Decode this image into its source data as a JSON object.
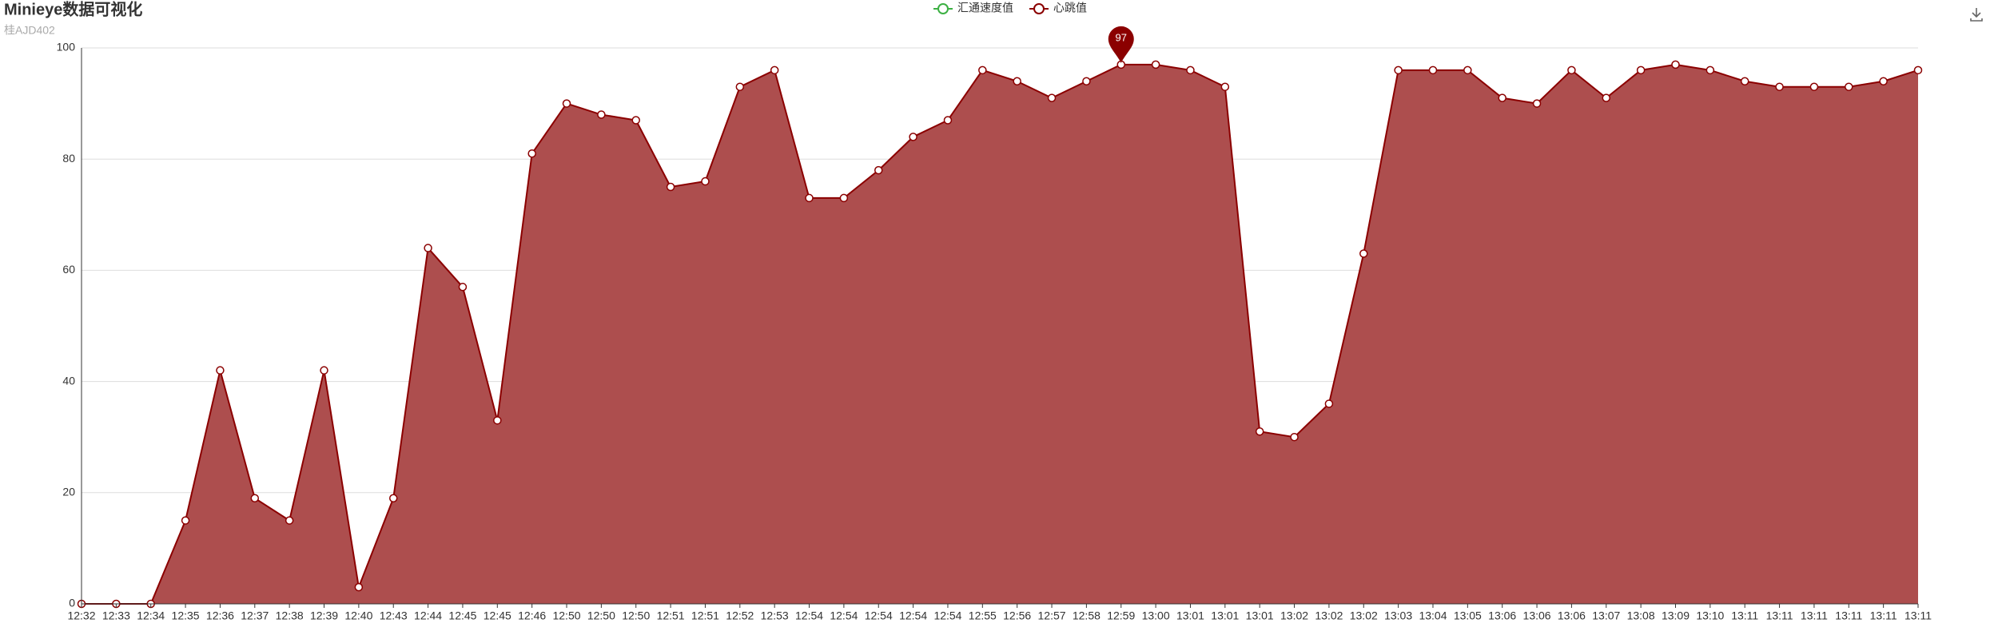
{
  "chart_data": {
    "type": "area",
    "title": "Minieye数据可视化",
    "subtitle": "桂AJD402",
    "legend": [
      {
        "name": "汇通速度值",
        "color": "#3cb043"
      },
      {
        "name": "心跳值",
        "color": "#8b0000"
      }
    ],
    "categories": [
      "12:32",
      "12:33",
      "12:34",
      "12:35",
      "12:36",
      "12:37",
      "12:38",
      "12:39",
      "12:40",
      "12:43",
      "12:44",
      "12:45",
      "12:45",
      "12:46",
      "12:50",
      "12:50",
      "12:50",
      "12:51",
      "12:51",
      "12:52",
      "12:53",
      "12:54",
      "12:54",
      "12:54",
      "12:54",
      "12:54",
      "12:55",
      "12:56",
      "12:57",
      "12:58",
      "12:59",
      "13:00",
      "13:01",
      "13:01",
      "13:01",
      "13:02",
      "13:02",
      "13:02",
      "13:03",
      "13:04",
      "13:05",
      "13:06",
      "13:06",
      "13:06",
      "13:07",
      "13:08",
      "13:09",
      "13:10",
      "13:11",
      "13:11",
      "13:11",
      "13:11",
      "13:11",
      "13:11"
    ],
    "series": [
      {
        "name": "心跳值",
        "color": "#8b0000",
        "fill": "#ad4e4e",
        "values": [
          0,
          0,
          0,
          15,
          42,
          19,
          15,
          42,
          3,
          19,
          64,
          57,
          33,
          81,
          90,
          88,
          87,
          75,
          76,
          93,
          96,
          73,
          73,
          78,
          84,
          87,
          96,
          94,
          91,
          94,
          97,
          97,
          96,
          93,
          31,
          30,
          36,
          63,
          96,
          96,
          96,
          91,
          90,
          96,
          91,
          96,
          97,
          96,
          94,
          93,
          93,
          93,
          94,
          96
        ]
      }
    ],
    "mark_point": {
      "category": "12:59",
      "value": 97
    },
    "ylim": [
      0,
      100
    ],
    "yticks": [
      0,
      20,
      40,
      60,
      80,
      100
    ],
    "grid": true
  }
}
